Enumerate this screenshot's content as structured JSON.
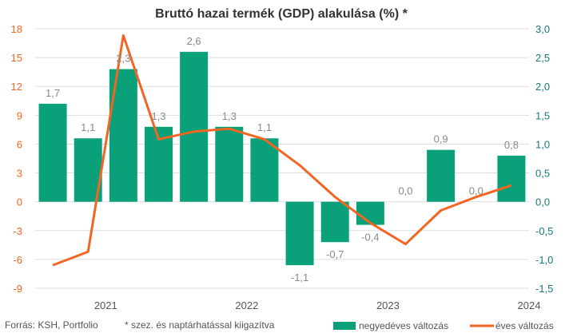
{
  "colors": {
    "bar": "#0aa07a",
    "line": "#f26522",
    "left_axis": "#f26522",
    "right_axis": "#1a7a7a",
    "grid": "#dddddd",
    "label": "#8a8a8a"
  },
  "chart_data": {
    "type": "bar",
    "title": "Bruttó hazai termék (GDP) alakulása (%) *",
    "x_ticks": [
      "2021",
      "2022",
      "2023",
      "2024"
    ],
    "left_axis": {
      "ticks": [
        "18",
        "15",
        "12",
        "9",
        "6",
        "3",
        "0",
        "-3",
        "-6",
        "-9"
      ],
      "ylim": [
        -9,
        18
      ]
    },
    "right_axis": {
      "ticks": [
        "3,0",
        "2,5",
        "2,0",
        "1,5",
        "1,0",
        "0,5",
        "0,0",
        "-0,5",
        "-1,0",
        "-1,5"
      ],
      "ylim": [
        -1.5,
        3.0
      ]
    },
    "grid": true,
    "legend_placement": "bottom-right",
    "series": [
      {
        "name": "negyedéves változás",
        "type": "bar",
        "axis": "right",
        "values": [
          1.7,
          1.1,
          2.3,
          1.3,
          2.6,
          1.3,
          1.1,
          -1.1,
          -0.7,
          -0.4,
          0.0,
          0.9,
          0.0,
          0.8
        ],
        "labels": [
          "1,7",
          "1,1",
          "2,3",
          "1,3",
          "2,6",
          "1,3",
          "1,1",
          "-1,1",
          "-0,7",
          "-0,4",
          "0,0",
          "0,9",
          "0,0",
          "0,8"
        ]
      },
      {
        "name": "éves változás",
        "type": "line",
        "axis": "left",
        "values": [
          -6.6,
          -5.2,
          17.3,
          6.5,
          7.3,
          7.6,
          6.5,
          3.8,
          0.5,
          -2.2,
          -4.4,
          -0.9,
          0.5,
          1.7
        ]
      }
    ],
    "footer": {
      "source": "Forrás: KSH, Portfolio",
      "note": "* szez. és naptárhatással kiigazítva"
    }
  }
}
